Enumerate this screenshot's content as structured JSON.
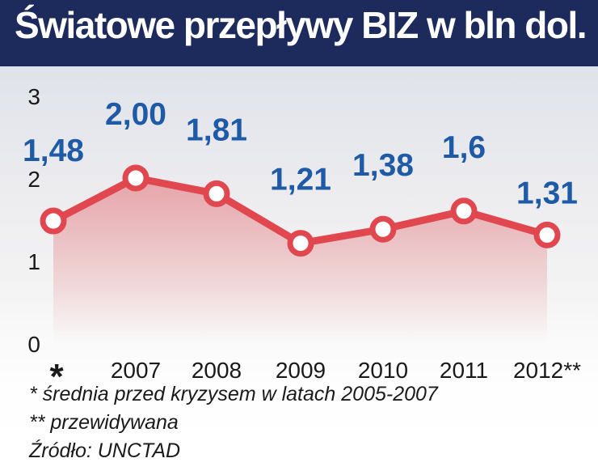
{
  "title": "Światowe przepływy BIZ w bln dol.",
  "colors": {
    "header_bg": "#1d2a5c",
    "line": "#e0474f",
    "area": "#e26a70",
    "value_label": "#1f5aa6",
    "axis_text": "#1a1a1a"
  },
  "chart_data": {
    "type": "line",
    "title": "Światowe przepływy BIZ w bln dol.",
    "categories": [
      "*",
      "2007",
      "2008",
      "2009",
      "2010",
      "2011",
      "2012**"
    ],
    "values": [
      1.48,
      2.0,
      1.81,
      1.21,
      1.38,
      1.6,
      1.31
    ],
    "value_labels": [
      "1,48",
      "2,00",
      "1,81",
      "1,21",
      "1,38",
      "1,6",
      "1,31"
    ],
    "yticks": [
      "0",
      "1",
      "2",
      "3"
    ],
    "ylim": [
      0,
      3
    ],
    "grid": false,
    "legend": "none"
  },
  "footnotes": [
    "* średnia przed kryzysem w latach 2005-2007",
    "** przewidywana",
    "Źródło: UNCTAD"
  ]
}
